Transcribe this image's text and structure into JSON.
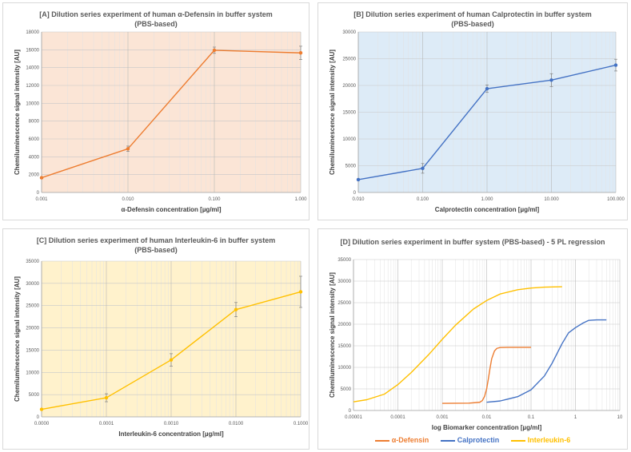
{
  "chart_data": [
    {
      "type": "line",
      "title_line1": "[A] Dilution series experiment of human α-Defensin in buffer system",
      "title_line2": "(PBS-based)",
      "xlabel": "α-Defensin concentration [µg/ml]",
      "ylabel": "Chemiluminescence signal intensity [AU]",
      "xscale": "log",
      "x": [
        0.001,
        0.01,
        0.1,
        1
      ],
      "x_tick_labels": [
        "0.001",
        "0.010",
        "0.100",
        "1.000"
      ],
      "ylim": [
        0,
        18000
      ],
      "y_ticks": [
        0,
        2000,
        4000,
        6000,
        8000,
        10000,
        12000,
        14000,
        16000,
        18000
      ],
      "series": [
        {
          "name": "α-Defensin",
          "color": "#ED7D31",
          "values": [
            1650,
            4900,
            15950,
            15650
          ],
          "errors": [
            100,
            300,
            350,
            750
          ]
        }
      ],
      "background": "#FBE5D6"
    },
    {
      "type": "line",
      "title_line1": "[B] Dilution series experiment of human Calprotectin in buffer system",
      "title_line2": "(PBS-based)",
      "xlabel": "Calprotectin concentration [µg/ml]",
      "ylabel": "Chemiluminescence signal intensity [AU]",
      "xscale": "log",
      "x": [
        0.01,
        0.1,
        1,
        10,
        100
      ],
      "x_tick_labels": [
        "0.010",
        "0.100",
        "1.000",
        "10.000",
        "100.000"
      ],
      "ylim": [
        0,
        30000
      ],
      "y_ticks": [
        0,
        5000,
        10000,
        15000,
        20000,
        25000,
        30000
      ],
      "series": [
        {
          "name": "Calprotectin",
          "color": "#4472C4",
          "values": [
            2400,
            4500,
            19400,
            21000,
            23800
          ],
          "errors": [
            150,
            900,
            700,
            1200,
            1100
          ]
        }
      ],
      "background": "#DDEBF7"
    },
    {
      "type": "line",
      "title_line1": "[C] Dilution series experiment of human Interleukin-6 in buffer system",
      "title_line2": "(PBS-based)",
      "xlabel": "Interleukin-6 concentration [µg/ml]",
      "ylabel": "Chemiluminescence signal intensity [AU]",
      "xscale": "log",
      "x": [
        1e-05,
        0.0001,
        0.001,
        0.01,
        0.1
      ],
      "x_tick_labels": [
        "0.0000",
        "0.0001",
        "0.0010",
        "0.0100",
        "0.1000"
      ],
      "ylim": [
        0,
        35000
      ],
      "y_ticks": [
        0,
        5000,
        10000,
        15000,
        20000,
        25000,
        30000,
        35000
      ],
      "series": [
        {
          "name": "Interleukin-6",
          "color": "#FFC000",
          "values": [
            1700,
            4300,
            12800,
            24100,
            28100
          ],
          "errors": [
            150,
            900,
            1400,
            1600,
            3500
          ]
        }
      ],
      "background": "#FFF2CC"
    },
    {
      "type": "line",
      "title_line1": "[D] Dilution series experiment in buffer system (PBS-based) - 5 PL regression",
      "xlabel": "log Biomarker concentration [µg/ml]",
      "ylabel": "Chemiluminescence signal intensity [AU]",
      "xscale": "log",
      "xlim": [
        1e-05,
        10
      ],
      "x_tick_values": [
        1e-05,
        0.0001,
        0.001,
        0.01,
        0.1,
        1,
        10
      ],
      "x_tick_labels": [
        "0.00001",
        "0.0001",
        "0.001",
        "0.01",
        "0.1",
        "1",
        "10"
      ],
      "ylim": [
        0,
        35000
      ],
      "y_ticks": [
        0,
        5000,
        10000,
        15000,
        20000,
        25000,
        30000,
        35000
      ],
      "series": [
        {
          "name": "α-Defensin",
          "color": "#ED7D31",
          "x": [
            0.001,
            0.004,
            0.007,
            0.008,
            0.009,
            0.01,
            0.011,
            0.012,
            0.013,
            0.015,
            0.017,
            0.02,
            0.03,
            0.05,
            0.1
          ],
          "values": [
            1650,
            1700,
            1900,
            2300,
            3300,
            5000,
            7500,
            10000,
            12000,
            13800,
            14400,
            14600,
            14650,
            14650,
            14650
          ]
        },
        {
          "name": "Calprotectin",
          "color": "#4472C4",
          "x": [
            0.01,
            0.02,
            0.05,
            0.1,
            0.2,
            0.3,
            0.5,
            0.7,
            1,
            1.5,
            2,
            3,
            5
          ],
          "values": [
            1900,
            2200,
            3200,
            4800,
            8000,
            11000,
            15500,
            18000,
            19200,
            20300,
            20900,
            21000,
            21000
          ]
        },
        {
          "name": "Interleukin-6",
          "color": "#FFC000",
          "x": [
            1e-05,
            2e-05,
            5e-05,
            0.0001,
            0.0002,
            0.0005,
            0.001,
            0.002,
            0.005,
            0.01,
            0.02,
            0.05,
            0.1,
            0.2,
            0.5
          ],
          "values": [
            2000,
            2500,
            3800,
            6000,
            8800,
            13000,
            16500,
            19800,
            23500,
            25500,
            27000,
            28000,
            28400,
            28600,
            28700
          ]
        }
      ],
      "legend": [
        "α-Defensin",
        "Calprotectin",
        "Interleukin-6"
      ],
      "legend_position": "bottom"
    }
  ]
}
